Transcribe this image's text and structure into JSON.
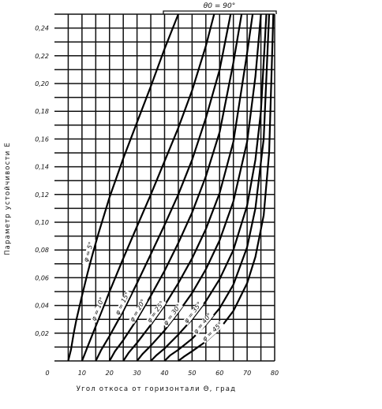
{
  "chart_data": {
    "type": "line",
    "title": "",
    "header_label": "θ0 = 90°",
    "xlabel": "Угол откоса от горизонтали Θ, град",
    "ylabel": "Параметр устойчивости E",
    "origin_label": "0",
    "xlim": [
      0,
      80
    ],
    "ylim": [
      0,
      0.25
    ],
    "grid": true,
    "x_ticks": [
      "10",
      "20",
      "30",
      "40",
      "50",
      "60",
      "70",
      "80"
    ],
    "y_ticks": [
      "0,02",
      "0,04",
      "0,06",
      "0,08",
      "0,10",
      "0,12",
      "0,14",
      "0,16",
      "0,18",
      "0,20",
      "0,22",
      "0,24"
    ],
    "series": [
      {
        "name": "φ = 5°",
        "x": [
          5,
          6,
          7,
          8,
          10,
          12,
          14,
          16,
          18,
          20,
          25,
          30,
          35,
          40,
          45
        ],
        "y": [
          0,
          0.008,
          0.02,
          0.03,
          0.047,
          0.063,
          0.078,
          0.092,
          0.105,
          0.118,
          0.146,
          0.172,
          0.198,
          0.225,
          0.252
        ]
      },
      {
        "name": "φ = 10°",
        "x": [
          10,
          11,
          12,
          14,
          16,
          18,
          20,
          25,
          30,
          35,
          40,
          45,
          50,
          55,
          58
        ],
        "y": [
          0,
          0.005,
          0.01,
          0.02,
          0.03,
          0.04,
          0.05,
          0.074,
          0.097,
          0.12,
          0.144,
          0.168,
          0.195,
          0.227,
          0.25
        ]
      },
      {
        "name": "φ = 15°",
        "x": [
          15,
          17,
          20,
          25,
          30,
          35,
          40,
          45,
          50,
          55,
          60,
          64
        ],
        "y": [
          0,
          0.008,
          0.018,
          0.036,
          0.056,
          0.077,
          0.098,
          0.12,
          0.145,
          0.175,
          0.21,
          0.25
        ]
      },
      {
        "name": "φ = 20°",
        "x": [
          20,
          22,
          25,
          30,
          35,
          40,
          45,
          50,
          55,
          60,
          65,
          68
        ],
        "y": [
          0,
          0.007,
          0.015,
          0.03,
          0.047,
          0.065,
          0.085,
          0.107,
          0.133,
          0.165,
          0.215,
          0.25
        ]
      },
      {
        "name": "φ = 25°",
        "x": [
          25,
          27,
          30,
          35,
          40,
          45,
          50,
          55,
          60,
          65,
          70,
          72
        ],
        "y": [
          0,
          0.006,
          0.013,
          0.026,
          0.04,
          0.056,
          0.074,
          0.095,
          0.121,
          0.158,
          0.222,
          0.25
        ]
      },
      {
        "name": "φ = 30°",
        "x": [
          30,
          32,
          35,
          40,
          45,
          50,
          55,
          60,
          65,
          70,
          73,
          75
        ],
        "y": [
          0,
          0.005,
          0.011,
          0.022,
          0.035,
          0.049,
          0.066,
          0.087,
          0.115,
          0.158,
          0.205,
          0.25
        ]
      },
      {
        "name": "φ = 35°",
        "x": [
          35,
          37,
          40,
          45,
          50,
          55,
          60,
          65,
          70,
          73,
          75,
          77
        ],
        "y": [
          0,
          0.004,
          0.009,
          0.019,
          0.03,
          0.043,
          0.059,
          0.08,
          0.112,
          0.145,
          0.18,
          0.25
        ]
      },
      {
        "name": "φ = 40°",
        "x": [
          40,
          42,
          45,
          50,
          55,
          60,
          65,
          70,
          73,
          76,
          78
        ],
        "y": [
          0,
          0.004,
          0.008,
          0.016,
          0.026,
          0.038,
          0.055,
          0.082,
          0.11,
          0.16,
          0.25
        ]
      },
      {
        "name": "φ = 45°",
        "x": [
          45,
          47,
          50,
          55,
          60,
          65,
          70,
          73,
          76,
          78,
          79.5
        ],
        "y": [
          0,
          0.003,
          0.007,
          0.014,
          0.023,
          0.036,
          0.056,
          0.075,
          0.105,
          0.15,
          0.25
        ]
      }
    ]
  }
}
